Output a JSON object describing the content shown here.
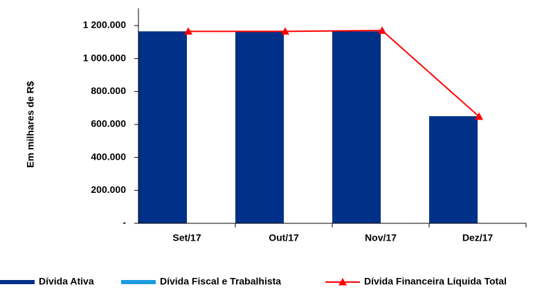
{
  "chart_data": {
    "type": "bar_line",
    "y_label": "Em milhares de R$",
    "categories": [
      "Set/17",
      "Out/17",
      "Nov/17",
      "Dez/17"
    ],
    "series": [
      {
        "name": "Dívida Ativa",
        "color": "#003087",
        "type": "bar",
        "values": [
          1165000,
          1162000,
          1165000,
          650000
        ]
      },
      {
        "name": "Dívida Fiscal e Trabalhista",
        "color": "#1e9be0",
        "type": "bar",
        "values": [
          0,
          0,
          0,
          0
        ]
      },
      {
        "name": "Dívida Financeira Líquida Total",
        "color": "#ff0000",
        "type": "line",
        "values": [
          1165000,
          1165000,
          1170000,
          648000
        ]
      }
    ],
    "ylim": [
      0,
      1200000
    ],
    "yticks": [
      {
        "value": 0,
        "label": "-"
      },
      {
        "value": 200000,
        "label": "200.000"
      },
      {
        "value": 400000,
        "label": "400.000"
      },
      {
        "value": 600000,
        "label": "600.000"
      },
      {
        "value": 800000,
        "label": "800.000"
      },
      {
        "value": 1000000,
        "label": "1 000.000"
      },
      {
        "value": 1200000,
        "label": "1 200.000"
      }
    ],
    "legend": "bottom"
  }
}
